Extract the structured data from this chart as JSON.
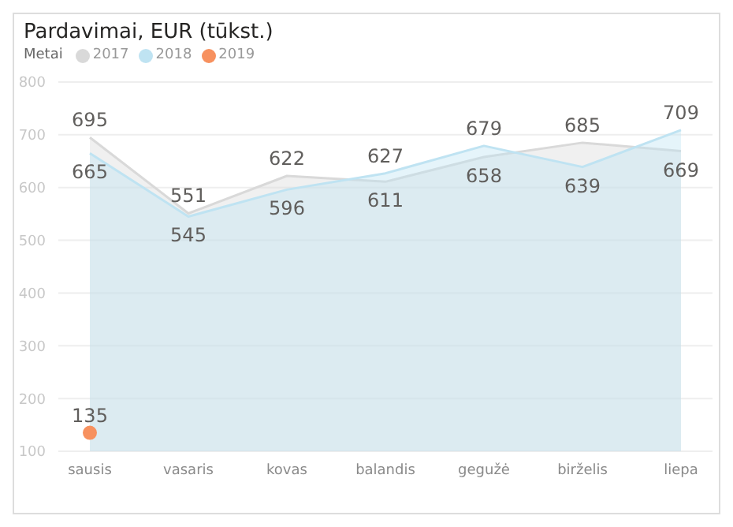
{
  "chart_data": {
    "type": "area",
    "title": "Pardavimai, EUR (tūkst.)",
    "legend_title": "Metai",
    "legend": "top left",
    "categories": [
      "sausis",
      "vasaris",
      "kovas",
      "balandis",
      "gegužė",
      "birželis",
      "liepa"
    ],
    "series": [
      {
        "name": "2017",
        "color": "#d9d9d9",
        "values": [
          695,
          551,
          622,
          611,
          658,
          685,
          669
        ]
      },
      {
        "name": "2018",
        "color": "#bfe3f2",
        "values": [
          665,
          545,
          596,
          627,
          679,
          639,
          709
        ]
      },
      {
        "name": "2019",
        "type": "scatter",
        "color": "#f7915f",
        "values": [
          135,
          null,
          null,
          null,
          null,
          null,
          null
        ]
      }
    ],
    "ylim": [
      100,
      800
    ],
    "yticks": [
      100,
      200,
      300,
      400,
      500,
      600,
      700,
      800
    ],
    "grid": "y",
    "data_labels": true
  }
}
